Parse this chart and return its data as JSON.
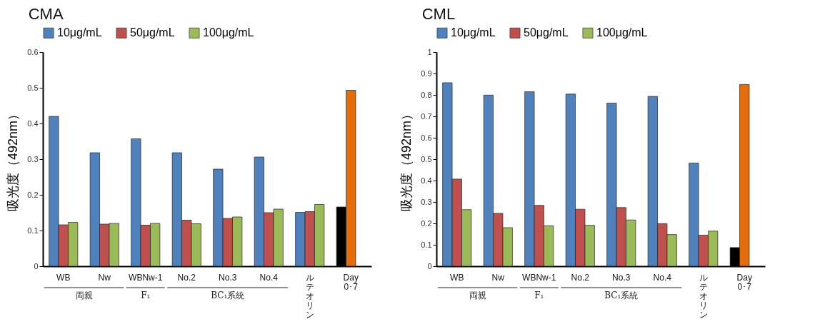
{
  "chart_data": [
    {
      "type": "bar",
      "title": "CMA",
      "ylabel": "吸光度（492nm）",
      "categories": [
        "WB",
        "Nw",
        "WBNw-1",
        "No.2",
        "No.3",
        "No.4",
        "ルテオリン",
        "Day 0･7"
      ],
      "series": [
        {
          "name": "10μg/mL",
          "color": "#4f81bd",
          "values": [
            0.42,
            0.318,
            0.357,
            0.318,
            0.272,
            0.306,
            0.151,
            null
          ]
        },
        {
          "name": "50μg/mL",
          "color": "#c0504d",
          "values": [
            0.116,
            0.118,
            0.115,
            0.129,
            0.134,
            0.15,
            0.153,
            null
          ]
        },
        {
          "name": "100μg/mL",
          "color": "#9bbb59",
          "values": [
            0.123,
            0.12,
            0.12,
            0.119,
            0.138,
            0.16,
            0.173,
            null
          ]
        },
        {
          "color": "#000000",
          "values": [
            null,
            null,
            null,
            null,
            null,
            null,
            null,
            0.166
          ]
        },
        {
          "color": "#e46c0a",
          "values": [
            null,
            null,
            null,
            null,
            null,
            null,
            null,
            0.493
          ]
        }
      ],
      "ylim": [
        0,
        0.6
      ],
      "yticks": [
        0,
        0.1,
        0.2,
        0.3,
        0.4,
        0.5,
        0.6
      ],
      "legend": "top",
      "annotations": [
        "両親",
        "F₁",
        "BC₁系統"
      ]
    },
    {
      "type": "bar",
      "title": "CML",
      "ylabel": "吸光度（492nm）",
      "categories": [
        "WB",
        "Nw",
        "WBNw-1",
        "No.2",
        "No.3",
        "No.4",
        "ルテオリン",
        "Day 0･7"
      ],
      "series": [
        {
          "name": "10μg/mL",
          "color": "#4f81bd",
          "values": [
            0.857,
            0.799,
            0.815,
            0.804,
            0.762,
            0.793,
            0.482,
            null
          ]
        },
        {
          "name": "50μg/mL",
          "color": "#c0504d",
          "values": [
            0.407,
            0.247,
            0.284,
            0.266,
            0.274,
            0.199,
            0.145,
            null
          ]
        },
        {
          "name": "100μg/mL",
          "color": "#9bbb59",
          "values": [
            0.264,
            0.18,
            0.189,
            0.191,
            0.216,
            0.148,
            0.164,
            null
          ]
        },
        {
          "color": "#000000",
          "values": [
            null,
            null,
            null,
            null,
            null,
            null,
            null,
            0.087
          ]
        },
        {
          "color": "#e46c0a",
          "values": [
            null,
            null,
            null,
            null,
            null,
            null,
            null,
            0.849
          ]
        }
      ],
      "ylim": [
        0,
        1
      ],
      "yticks": [
        0,
        0.1,
        0.2,
        0.3,
        0.4,
        0.5,
        0.6,
        0.7,
        0.8,
        0.9,
        1
      ],
      "legend": "top",
      "annotations": [
        "両親",
        "F₁",
        "BC₁系統"
      ]
    }
  ]
}
